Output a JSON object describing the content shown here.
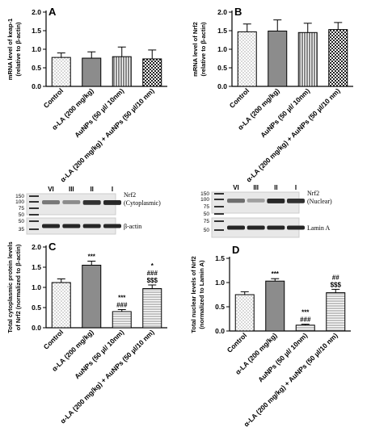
{
  "chart_data": [
    {
      "panel": "A",
      "type": "bar",
      "ylabel_lines": [
        "mRNA level of keap-1",
        "(relative to β-actin)"
      ],
      "categories": [
        "Control",
        "α-LA (200 mg/kg)",
        "AuNPs (50 µl/ 10nm)",
        "α-LA (200 mg/kg) + AuNPs (50 µl/10 nm)"
      ],
      "values": [
        0.78,
        0.76,
        0.8,
        0.74
      ],
      "errors": [
        0.12,
        0.17,
        0.26,
        0.24
      ],
      "ylim": [
        0,
        2.0
      ],
      "ticks": [
        "0.0",
        "0.5",
        "1.0",
        "1.5",
        "2.0"
      ],
      "patterns": [
        "dots",
        "gray",
        "vlines",
        "checker"
      ],
      "annotations": [
        [],
        [],
        [],
        []
      ]
    },
    {
      "panel": "B",
      "type": "bar",
      "ylabel_lines": [
        "mRNA level of Nrf2",
        "(relative to β-actin)"
      ],
      "categories": [
        "Control",
        "α-LA (200 mg/kg)",
        "AuNPs (50 µl/ 10nm)",
        "α-LA (200 mg/kg) + AuNPs (50 µl/10 nm)"
      ],
      "values": [
        1.47,
        1.49,
        1.45,
        1.53
      ],
      "errors": [
        0.21,
        0.3,
        0.25,
        0.19
      ],
      "ylim": [
        0,
        2.0
      ],
      "ticks": [
        "0.0",
        "0.5",
        "1.0",
        "1.5",
        "2.0"
      ],
      "patterns": [
        "dots",
        "gray",
        "vlines",
        "checker"
      ],
      "annotations": [
        [],
        [],
        [],
        []
      ]
    },
    {
      "panel": "C",
      "type": "bar",
      "ylabel_lines": [
        "Total cytoplasmic protein levels",
        "of Nrf2 (normalized to β-actin)"
      ],
      "categories": [
        "Control",
        "α-LA (200 mg/kg)",
        "AuNPs (50 µl/ 10nm)",
        "α-LA (200 mg/kg) + AuNPs (50 µl/10 nm)"
      ],
      "values": [
        1.12,
        1.55,
        0.4,
        0.97
      ],
      "errors": [
        0.09,
        0.1,
        0.05,
        0.09
      ],
      "ylim": [
        0,
        2.0
      ],
      "ticks": [
        "0.0",
        "0.5",
        "1.0",
        "1.5",
        "2.0"
      ],
      "patterns": [
        "dots",
        "gray",
        "hlines",
        "hlines"
      ],
      "annotations": [
        [],
        [
          "***"
        ],
        [
          "***",
          "###"
        ],
        [
          "*",
          "###",
          "$$$"
        ]
      ]
    },
    {
      "panel": "D",
      "type": "bar",
      "ylabel_lines": [
        "Total nuclear levels of Nrf2",
        "(normalized to Lamin A)"
      ],
      "categories": [
        "Control",
        "α-LA (200 mg/kg)",
        "AuNPs (50 µl/ 10nm)",
        "α-LA (200 mg/kg) + AuNPs (50 µl/10 nm)"
      ],
      "values": [
        0.75,
        1.03,
        0.12,
        0.79
      ],
      "errors": [
        0.06,
        0.05,
        0.02,
        0.07
      ],
      "ylim": [
        0,
        1.5
      ],
      "ticks": [
        "0.0",
        "0.5",
        "1.0",
        "1.5"
      ],
      "patterns": [
        "dots",
        "gray",
        "hlines",
        "hlines"
      ],
      "annotations": [
        [],
        [
          "***"
        ],
        [
          "***",
          "###"
        ],
        [
          "##",
          "$$$"
        ]
      ]
    }
  ],
  "blots": [
    {
      "lanes": [
        "VI",
        "III",
        "II",
        "I"
      ],
      "markers_top": [
        "150",
        "100",
        "75",
        "50"
      ],
      "markers_bottom": [
        "50",
        "35"
      ],
      "label_top": [
        "Nrf2",
        "(Cytoplasmic)"
      ],
      "label_bottom": "β-actin",
      "band_strength_top": [
        0.55,
        0.45,
        0.9,
        0.95
      ]
    },
    {
      "lanes": [
        "VI",
        "III",
        "II",
        "I"
      ],
      "markers_top": [
        "150",
        "100",
        "75",
        "50"
      ],
      "markers_bottom": [
        "75",
        "50"
      ],
      "label_top": [
        "Nrf2",
        "(Nuclear)"
      ],
      "label_bottom": "Lamin A",
      "band_strength_top": [
        0.6,
        0.35,
        0.95,
        0.9
      ]
    }
  ]
}
